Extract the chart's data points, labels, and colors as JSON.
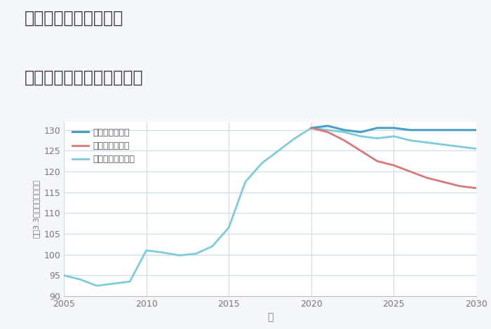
{
  "title_line1": "兵庫県姫路市西中島の",
  "title_line2": "中古マンションの価格推移",
  "xlabel": "年",
  "ylabel": "坪（3.3㎡）単価（万円）",
  "ylim": [
    90,
    132
  ],
  "yticks": [
    90,
    95,
    100,
    105,
    110,
    115,
    120,
    125,
    130
  ],
  "xlim": [
    2005,
    2030
  ],
  "xticks": [
    2005,
    2010,
    2015,
    2020,
    2025,
    2030
  ],
  "bg_color": "#f5f7fb",
  "plot_bg_color": "#ffffff",
  "grid_color": "#c8d8ea",
  "normal_color": "#7ecbdb",
  "good_color": "#4a9fc8",
  "bad_color": "#d87878",
  "legend_labels": [
    "グッドシナリオ",
    "バッドシナリオ",
    "ノーマルシナリオ"
  ],
  "normal_x": [
    2005,
    2006,
    2007,
    2008,
    2009,
    2010,
    2011,
    2012,
    2013,
    2014,
    2015,
    2016,
    2017,
    2018,
    2019,
    2020,
    2021,
    2022,
    2023,
    2024,
    2025,
    2026,
    2027,
    2028,
    2029,
    2030
  ],
  "normal_y": [
    95.0,
    94.0,
    92.5,
    93.0,
    93.5,
    101.0,
    100.5,
    99.8,
    100.2,
    102.0,
    106.5,
    117.5,
    122.0,
    125.0,
    128.0,
    130.5,
    130.0,
    129.5,
    128.5,
    128.0,
    128.5,
    127.5,
    127.0,
    126.5,
    126.0,
    125.5
  ],
  "good_x": [
    2020,
    2021,
    2022,
    2023,
    2024,
    2025,
    2026,
    2027,
    2028,
    2029,
    2030
  ],
  "good_y": [
    130.5,
    131.0,
    130.0,
    129.5,
    130.5,
    130.5,
    130.0,
    130.0,
    130.0,
    130.0,
    130.0
  ],
  "bad_x": [
    2020,
    2021,
    2022,
    2023,
    2024,
    2025,
    2026,
    2027,
    2028,
    2029,
    2030
  ],
  "bad_y": [
    130.5,
    129.5,
    127.5,
    125.0,
    122.5,
    121.5,
    120.0,
    118.5,
    117.5,
    116.5,
    116.0
  ]
}
